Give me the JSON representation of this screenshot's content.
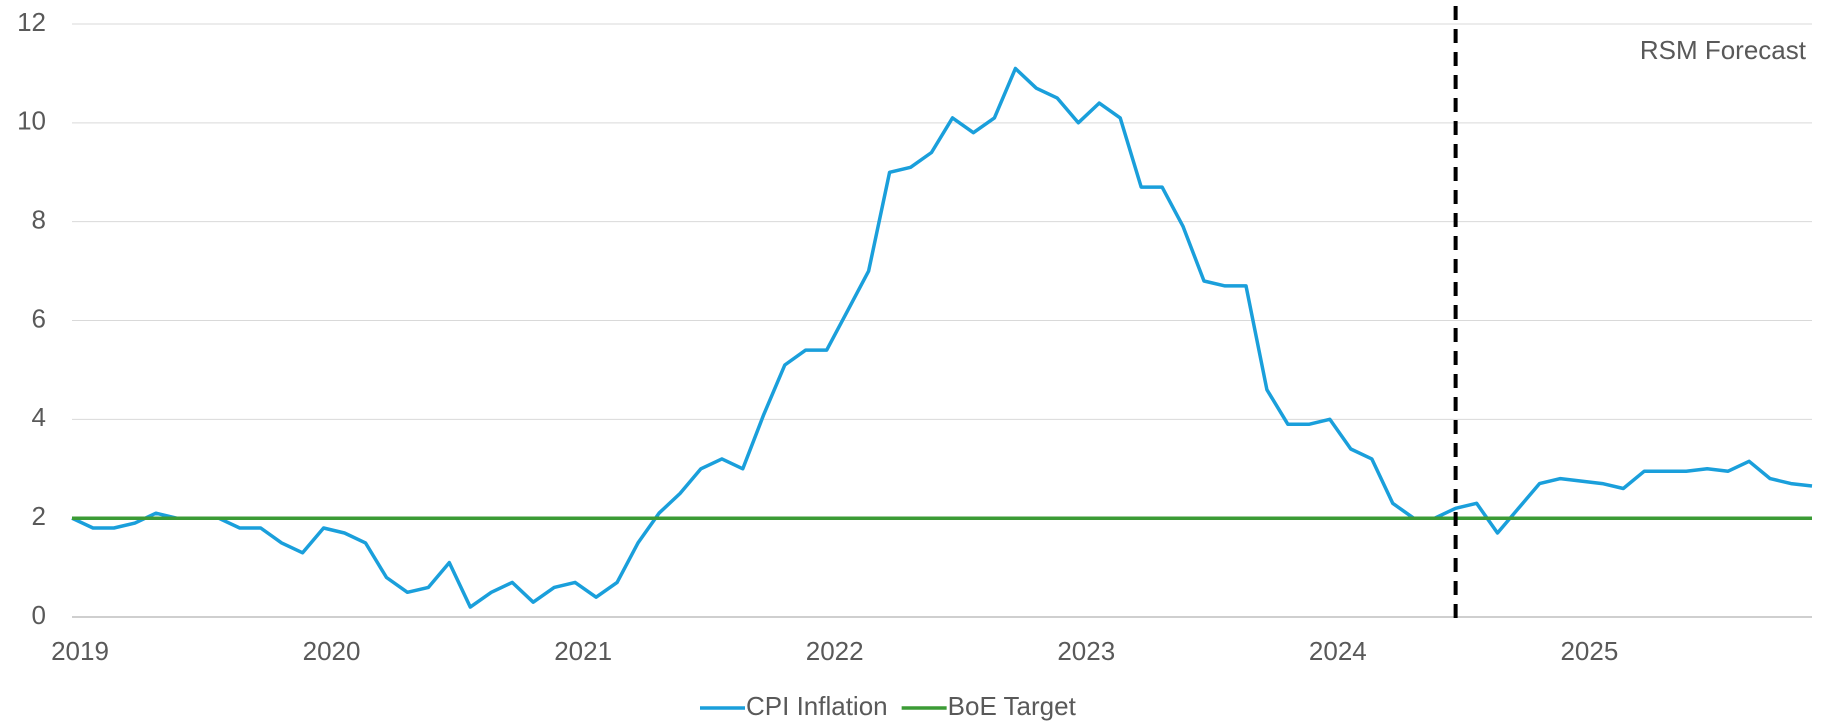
{
  "chart_data": {
    "type": "line",
    "categories": [
      "2019",
      null,
      null,
      null,
      null,
      null,
      null,
      null,
      null,
      null,
      null,
      null,
      "2020",
      null,
      null,
      null,
      null,
      null,
      null,
      null,
      null,
      null,
      null,
      null,
      "2021",
      null,
      null,
      null,
      null,
      null,
      null,
      null,
      null,
      null,
      null,
      null,
      "2022",
      null,
      null,
      null,
      null,
      null,
      null,
      null,
      null,
      null,
      null,
      null,
      "2023",
      null,
      null,
      null,
      null,
      null,
      null,
      null,
      null,
      null,
      null,
      null,
      "2024",
      null,
      null,
      null,
      null,
      null,
      null,
      null,
      null,
      null,
      null,
      null,
      "2025",
      null,
      null,
      null,
      null,
      null,
      null,
      null,
      null,
      null,
      null,
      null
    ],
    "series": [
      {
        "name": "CPI Inflation",
        "color": "#1a9fdb",
        "values": [
          2.0,
          1.8,
          1.8,
          1.9,
          2.1,
          2.0,
          2.0,
          2.0,
          1.8,
          1.8,
          1.5,
          1.3,
          1.8,
          1.7,
          1.5,
          0.8,
          0.5,
          0.6,
          1.1,
          0.2,
          0.5,
          0.7,
          0.3,
          0.6,
          0.7,
          0.4,
          0.7,
          1.5,
          2.1,
          2.5,
          3.0,
          3.2,
          3.0,
          4.1,
          5.1,
          5.4,
          5.4,
          6.2,
          7.0,
          9.0,
          9.1,
          9.4,
          10.1,
          9.8,
          10.1,
          11.1,
          10.7,
          10.5,
          10.0,
          10.4,
          10.1,
          8.7,
          8.7,
          7.9,
          6.8,
          6.7,
          6.7,
          4.6,
          3.9,
          3.9,
          4.0,
          3.4,
          3.2,
          2.3,
          2.0,
          2.0,
          2.2,
          2.3,
          1.7,
          2.2,
          2.7,
          2.8,
          2.75,
          2.7,
          2.6,
          2.95,
          2.95,
          2.95,
          3.0,
          2.95,
          3.15,
          2.8,
          2.7,
          2.65
        ]
      },
      {
        "name": "BoE Target",
        "color": "#3b9b35",
        "values": [
          2,
          2,
          2,
          2,
          2,
          2,
          2,
          2,
          2,
          2,
          2,
          2,
          2,
          2,
          2,
          2,
          2,
          2,
          2,
          2,
          2,
          2,
          2,
          2,
          2,
          2,
          2,
          2,
          2,
          2,
          2,
          2,
          2,
          2,
          2,
          2,
          2,
          2,
          2,
          2,
          2,
          2,
          2,
          2,
          2,
          2,
          2,
          2,
          2,
          2,
          2,
          2,
          2,
          2,
          2,
          2,
          2,
          2,
          2,
          2,
          2,
          2,
          2,
          2,
          2,
          2,
          2,
          2,
          2,
          2,
          2,
          2,
          2,
          2,
          2,
          2,
          2,
          2,
          2,
          2,
          2,
          2,
          2,
          2
        ]
      }
    ],
    "forecast_marker": {
      "label": "RSM Forecast",
      "index": 66
    },
    "ylim": [
      0,
      12
    ],
    "yticks": [
      0,
      2,
      4,
      6,
      8,
      10,
      12
    ],
    "grid": true,
    "legend": "bottom"
  }
}
